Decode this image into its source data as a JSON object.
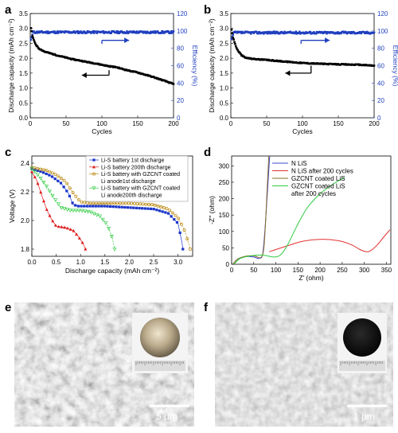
{
  "chart_data": [
    {
      "panel": "a",
      "type": "scatter",
      "xlabel": "Cycles",
      "ylabel": "Discharge capacity (mAh cm⁻²)",
      "y2label": "Efficiency (%)",
      "xlim": [
        0,
        200
      ],
      "ylim": [
        0,
        3.5
      ],
      "y2lim": [
        0,
        120
      ],
      "xticks": [
        0,
        50,
        100,
        150,
        200
      ],
      "yticks": [
        0.0,
        0.5,
        1.0,
        1.5,
        2.0,
        2.5,
        3.0,
        3.5
      ],
      "y2ticks": [
        0,
        20,
        40,
        60,
        80,
        100,
        120
      ],
      "capacity_curve": [
        [
          1,
          3.0
        ],
        [
          2,
          2.9
        ],
        [
          3,
          2.75
        ],
        [
          5,
          2.6
        ],
        [
          8,
          2.45
        ],
        [
          12,
          2.33
        ],
        [
          20,
          2.22
        ],
        [
          30,
          2.15
        ],
        [
          40,
          2.08
        ],
        [
          50,
          2.02
        ],
        [
          60,
          1.96
        ],
        [
          70,
          1.92
        ],
        [
          80,
          1.87
        ],
        [
          90,
          1.83
        ],
        [
          100,
          1.78
        ],
        [
          110,
          1.73
        ],
        [
          120,
          1.7
        ],
        [
          130,
          1.63
        ],
        [
          140,
          1.57
        ],
        [
          150,
          1.52
        ],
        [
          160,
          1.45
        ],
        [
          170,
          1.38
        ],
        [
          180,
          1.3
        ],
        [
          190,
          1.22
        ],
        [
          200,
          1.13
        ]
      ],
      "efficiency_level": 98.5,
      "efficiency_start": 87
    },
    {
      "panel": "b",
      "type": "scatter",
      "xlabel": "Cycles",
      "ylabel": "Discharge capacity (mAh cm⁻²)",
      "y2label": "Efficiency (%)",
      "xlim": [
        0,
        200
      ],
      "ylim": [
        0,
        3.5
      ],
      "y2lim": [
        0,
        120
      ],
      "xticks": [
        0,
        50,
        100,
        150,
        200
      ],
      "yticks": [
        0.0,
        0.5,
        1.0,
        1.5,
        2.0,
        2.5,
        3.0,
        3.5
      ],
      "y2ticks": [
        0,
        20,
        40,
        60,
        80,
        100,
        120
      ],
      "capacity_curve": [
        [
          1,
          2.95
        ],
        [
          2,
          2.85
        ],
        [
          3,
          2.7
        ],
        [
          5,
          2.55
        ],
        [
          7,
          2.4
        ],
        [
          10,
          2.25
        ],
        [
          15,
          2.1
        ],
        [
          20,
          2.02
        ],
        [
          30,
          1.98
        ],
        [
          40,
          1.96
        ],
        [
          50,
          1.94
        ],
        [
          60,
          1.92
        ],
        [
          70,
          1.9
        ],
        [
          80,
          1.88
        ],
        [
          100,
          1.84
        ],
        [
          120,
          1.82
        ],
        [
          140,
          1.8
        ],
        [
          160,
          1.79
        ],
        [
          180,
          1.78
        ],
        [
          200,
          1.75
        ]
      ],
      "efficiency_level": 98,
      "efficiency_start": 88
    },
    {
      "panel": "c",
      "type": "line",
      "xlabel": "Discharge capacity (mAh cm⁻²)",
      "ylabel": "Voltage (V)",
      "xlim": [
        0,
        3.3
      ],
      "ylim": [
        1.75,
        2.45
      ],
      "xticks": [
        0.0,
        0.5,
        1.0,
        1.5,
        2.0,
        2.5,
        3.0
      ],
      "yticks": [
        1.8,
        2.0,
        2.2,
        2.4
      ],
      "legend_position": "top-right",
      "series": [
        {
          "name": "Li-S battery 1st discharge",
          "color": "#1a35c8",
          "marker": "square",
          "points": [
            [
              0,
              2.36
            ],
            [
              0.2,
              2.34
            ],
            [
              0.4,
              2.31
            ],
            [
              0.6,
              2.26
            ],
            [
              0.75,
              2.19
            ],
            [
              0.85,
              2.11
            ],
            [
              0.95,
              2.1
            ],
            [
              1.2,
              2.1
            ],
            [
              1.5,
              2.1
            ],
            [
              2.0,
              2.09
            ],
            [
              2.5,
              2.08
            ],
            [
              2.8,
              2.05
            ],
            [
              3.0,
              1.98
            ],
            [
              3.08,
              1.85
            ],
            [
              3.1,
              1.8
            ]
          ]
        },
        {
          "name": "Li-S battery 200th discharge",
          "color": "#dd1c1c",
          "marker": "triangle",
          "points": [
            [
              0,
              2.34
            ],
            [
              0.1,
              2.28
            ],
            [
              0.2,
              2.18
            ],
            [
              0.3,
              2.08
            ],
            [
              0.4,
              2.01
            ],
            [
              0.5,
              1.96
            ],
            [
              0.7,
              1.95
            ],
            [
              0.85,
              1.93
            ],
            [
              0.95,
              1.89
            ],
            [
              1.05,
              1.84
            ],
            [
              1.1,
              1.8
            ]
          ]
        },
        {
          "name": "Li-S battery with GZCNT coated",
          "color": "#b8860b",
          "marker": "circle",
          "points": [
            [
              0,
              2.37
            ],
            [
              0.3,
              2.35
            ],
            [
              0.5,
              2.32
            ],
            [
              0.7,
              2.27
            ],
            [
              0.85,
              2.19
            ],
            [
              1.0,
              2.13
            ],
            [
              1.2,
              2.12
            ],
            [
              1.5,
              2.12
            ],
            [
              2.0,
              2.12
            ],
            [
              2.5,
              2.11
            ],
            [
              2.8,
              2.08
            ],
            [
              3.0,
              2.02
            ],
            [
              3.15,
              1.92
            ],
            [
              3.25,
              1.8
            ]
          ]
        },
        {
          "name": "Li anode1st discharge",
          "color": "#b8860b",
          "marker": "none",
          "points": []
        },
        {
          "name": "Li-S battery with GZCNT coated",
          "color": "#2ecc40",
          "marker": "triangle-down",
          "points": [
            [
              0,
              2.36
            ],
            [
              0.15,
              2.31
            ],
            [
              0.3,
              2.24
            ],
            [
              0.45,
              2.16
            ],
            [
              0.6,
              2.09
            ],
            [
              0.8,
              2.07
            ],
            [
              1.0,
              2.07
            ],
            [
              1.2,
              2.06
            ],
            [
              1.4,
              2.03
            ],
            [
              1.55,
              1.97
            ],
            [
              1.65,
              1.88
            ],
            [
              1.7,
              1.8
            ]
          ]
        },
        {
          "name": "Li anode200th discharge",
          "color": "#2ecc40",
          "marker": "none",
          "points": []
        }
      ]
    },
    {
      "panel": "d",
      "type": "line",
      "xlabel": "Z' (ohm)",
      "ylabel": "-Z'' (ohm)",
      "xlim": [
        0,
        360
      ],
      "ylim": [
        0,
        330
      ],
      "xticks": [
        0,
        50,
        100,
        150,
        200,
        250,
        300,
        350
      ],
      "yticks": [
        0,
        50,
        100,
        150,
        200,
        250,
        300
      ],
      "legend_position": "top-right",
      "series": [
        {
          "name": "N LiS",
          "color": "#3b4ad6",
          "points": [
            [
              3,
              0
            ],
            [
              10,
              12
            ],
            [
              20,
              20
            ],
            [
              35,
              24
            ],
            [
              50,
              22
            ],
            [
              62,
              18
            ],
            [
              70,
              30
            ],
            [
              75,
              100
            ],
            [
              80,
              200
            ],
            [
              86,
              330
            ]
          ]
        },
        {
          "name": "N LiS after 200 cycles",
          "color": "#e03030",
          "points": [
            [
              85,
              38
            ],
            [
              100,
              45
            ],
            [
              130,
              58
            ],
            [
              160,
              70
            ],
            [
              200,
              76
            ],
            [
              240,
              72
            ],
            [
              270,
              60
            ],
            [
              290,
              45
            ],
            [
              305,
              38
            ],
            [
              315,
              42
            ],
            [
              330,
              60
            ],
            [
              345,
              85
            ],
            [
              358,
              105
            ]
          ]
        },
        {
          "name": "GZCNT coated LiS",
          "color": "#8b6b2a",
          "points": [
            [
              3,
              0
            ],
            [
              12,
              14
            ],
            [
              25,
              22
            ],
            [
              40,
              26
            ],
            [
              55,
              24
            ],
            [
              65,
              20
            ],
            [
              72,
              40
            ],
            [
              76,
              110
            ],
            [
              80,
              220
            ],
            [
              84,
              330
            ]
          ]
        },
        {
          "name": "GZCNT coated LiS",
          "color": "#2ecc40",
          "points": [
            [
              5,
              0
            ],
            [
              20,
              18
            ],
            [
              45,
              26
            ],
            [
              70,
              28
            ],
            [
              95,
              22
            ],
            [
              110,
              28
            ],
            [
              125,
              55
            ],
            [
              145,
              110
            ],
            [
              170,
              170
            ],
            [
              200,
              215
            ],
            [
              230,
              245
            ],
            [
              255,
              265
            ]
          ]
        },
        {
          "name": "after 200 cycles",
          "color": "#2ecc40",
          "points": []
        }
      ]
    }
  ],
  "images": [
    {
      "panel": "e",
      "scale_bar": "5 µm"
    },
    {
      "panel": "f",
      "scale_bar": "1 µm"
    }
  ],
  "panel_labels": [
    "a",
    "b",
    "c",
    "d",
    "e",
    "f"
  ],
  "colors": {
    "capacity": "#000000",
    "efficiency": "#1f3fbf"
  }
}
